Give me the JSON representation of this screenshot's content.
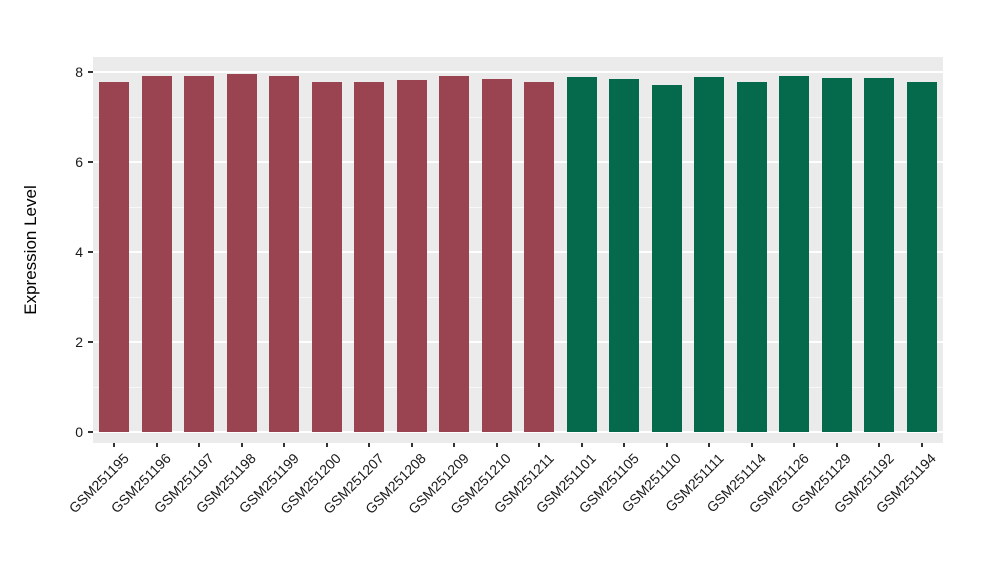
{
  "chart_data": {
    "type": "bar",
    "title": "",
    "xlabel": "",
    "ylabel": "Expression Level",
    "ylim": [
      -0.25,
      8.32
    ],
    "yticks": [
      0,
      2,
      4,
      6,
      8
    ],
    "minor_gridlines": [
      1,
      3,
      5,
      7
    ],
    "grid": true,
    "legend_position": "none",
    "panel_bg": "#EBEBEB",
    "grid_color": "#FFFFFF",
    "axis_text_color": "#1A1A1A",
    "tick_mark_color": "#333333",
    "series": [
      {
        "name": "group-red",
        "color": "#9B4451",
        "bars": [
          {
            "label": "GSM251195",
            "value": 7.78
          },
          {
            "label": "GSM251196",
            "value": 7.92
          },
          {
            "label": "GSM251197",
            "value": 7.92
          },
          {
            "label": "GSM251198",
            "value": 7.95
          },
          {
            "label": "GSM251199",
            "value": 7.91
          },
          {
            "label": "GSM251200",
            "value": 7.77
          },
          {
            "label": "GSM251207",
            "value": 7.78
          },
          {
            "label": "GSM251208",
            "value": 7.83
          },
          {
            "label": "GSM251209",
            "value": 7.91
          },
          {
            "label": "GSM251210",
            "value": 7.85
          },
          {
            "label": "GSM251211",
            "value": 7.77
          }
        ]
      },
      {
        "name": "group-green",
        "color": "#05694B",
        "bars": [
          {
            "label": "GSM251101",
            "value": 7.89
          },
          {
            "label": "GSM251105",
            "value": 7.85
          },
          {
            "label": "GSM251110",
            "value": 7.72
          },
          {
            "label": "GSM251111",
            "value": 7.9
          },
          {
            "label": "GSM251114",
            "value": 7.78
          },
          {
            "label": "GSM251126",
            "value": 7.92
          },
          {
            "label": "GSM251129",
            "value": 7.87
          },
          {
            "label": "GSM251192",
            "value": 7.87
          },
          {
            "label": "GSM251194",
            "value": 7.78
          }
        ]
      }
    ]
  }
}
